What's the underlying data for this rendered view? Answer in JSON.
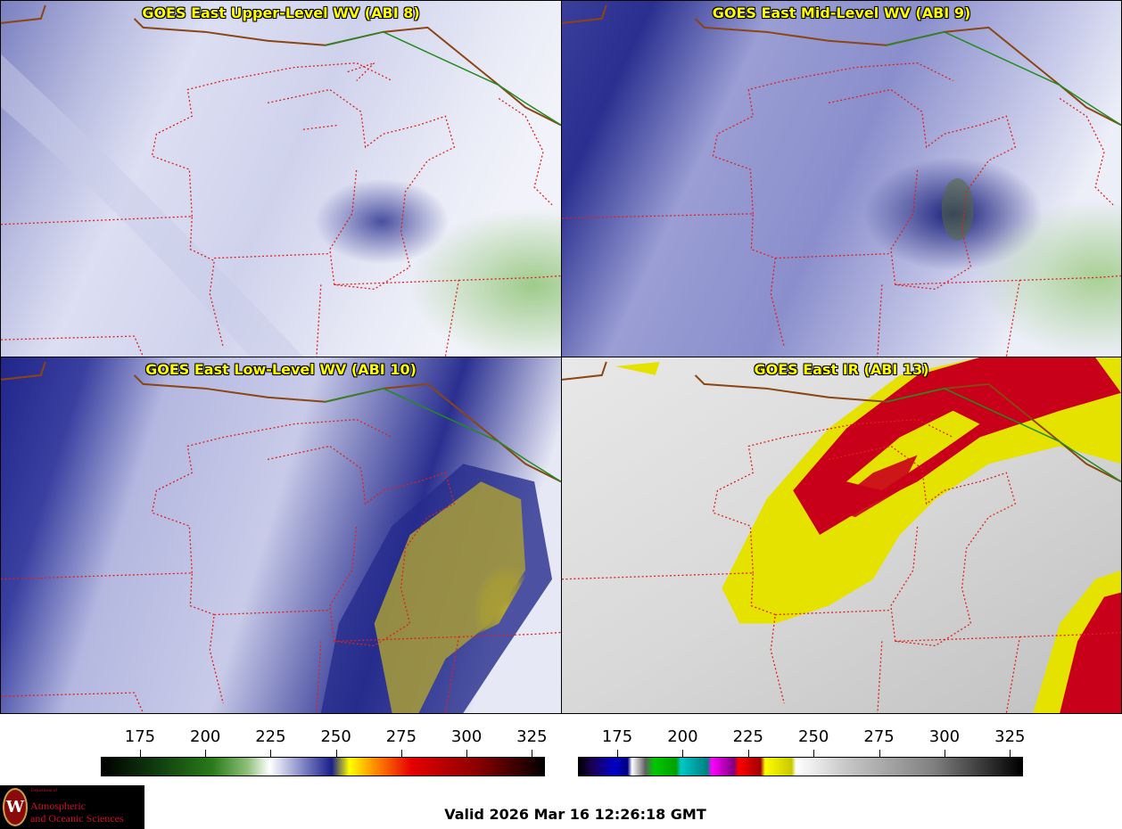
{
  "panels": [
    {
      "id": "p1",
      "title": "GOES East Upper-Level WV (ABI 8)"
    },
    {
      "id": "p2",
      "title": "GOES East Mid-Level WV (ABI 9)"
    },
    {
      "id": "p3",
      "title": "GOES East Low-Level WV (ABI 10)"
    },
    {
      "id": "p4",
      "title": "GOES East IR (ABI 13)"
    }
  ],
  "colorbars": {
    "left": {
      "ticks": [
        "175",
        "200",
        "225",
        "250",
        "275",
        "300",
        "325"
      ],
      "range": [
        160,
        330
      ],
      "tick_values": [
        175,
        200,
        225,
        250,
        275,
        300,
        325
      ]
    },
    "right": {
      "ticks": [
        "175",
        "200",
        "225",
        "250",
        "275",
        "300",
        "325"
      ],
      "range": [
        160,
        330
      ],
      "tick_values": [
        175,
        200,
        225,
        250,
        275,
        300,
        325
      ]
    }
  },
  "valid_time": "Valid 2026 Mar 16 12:26:18 GMT",
  "logo": {
    "department": "Department of",
    "line1": "Atmospheric",
    "line2": "and Oceanic Sciences",
    "seal_letter": "W"
  },
  "colors": {
    "title": "#ffff00",
    "state_border": "#e0201c",
    "country_border": "#228b22",
    "coast": "#8b4513"
  }
}
